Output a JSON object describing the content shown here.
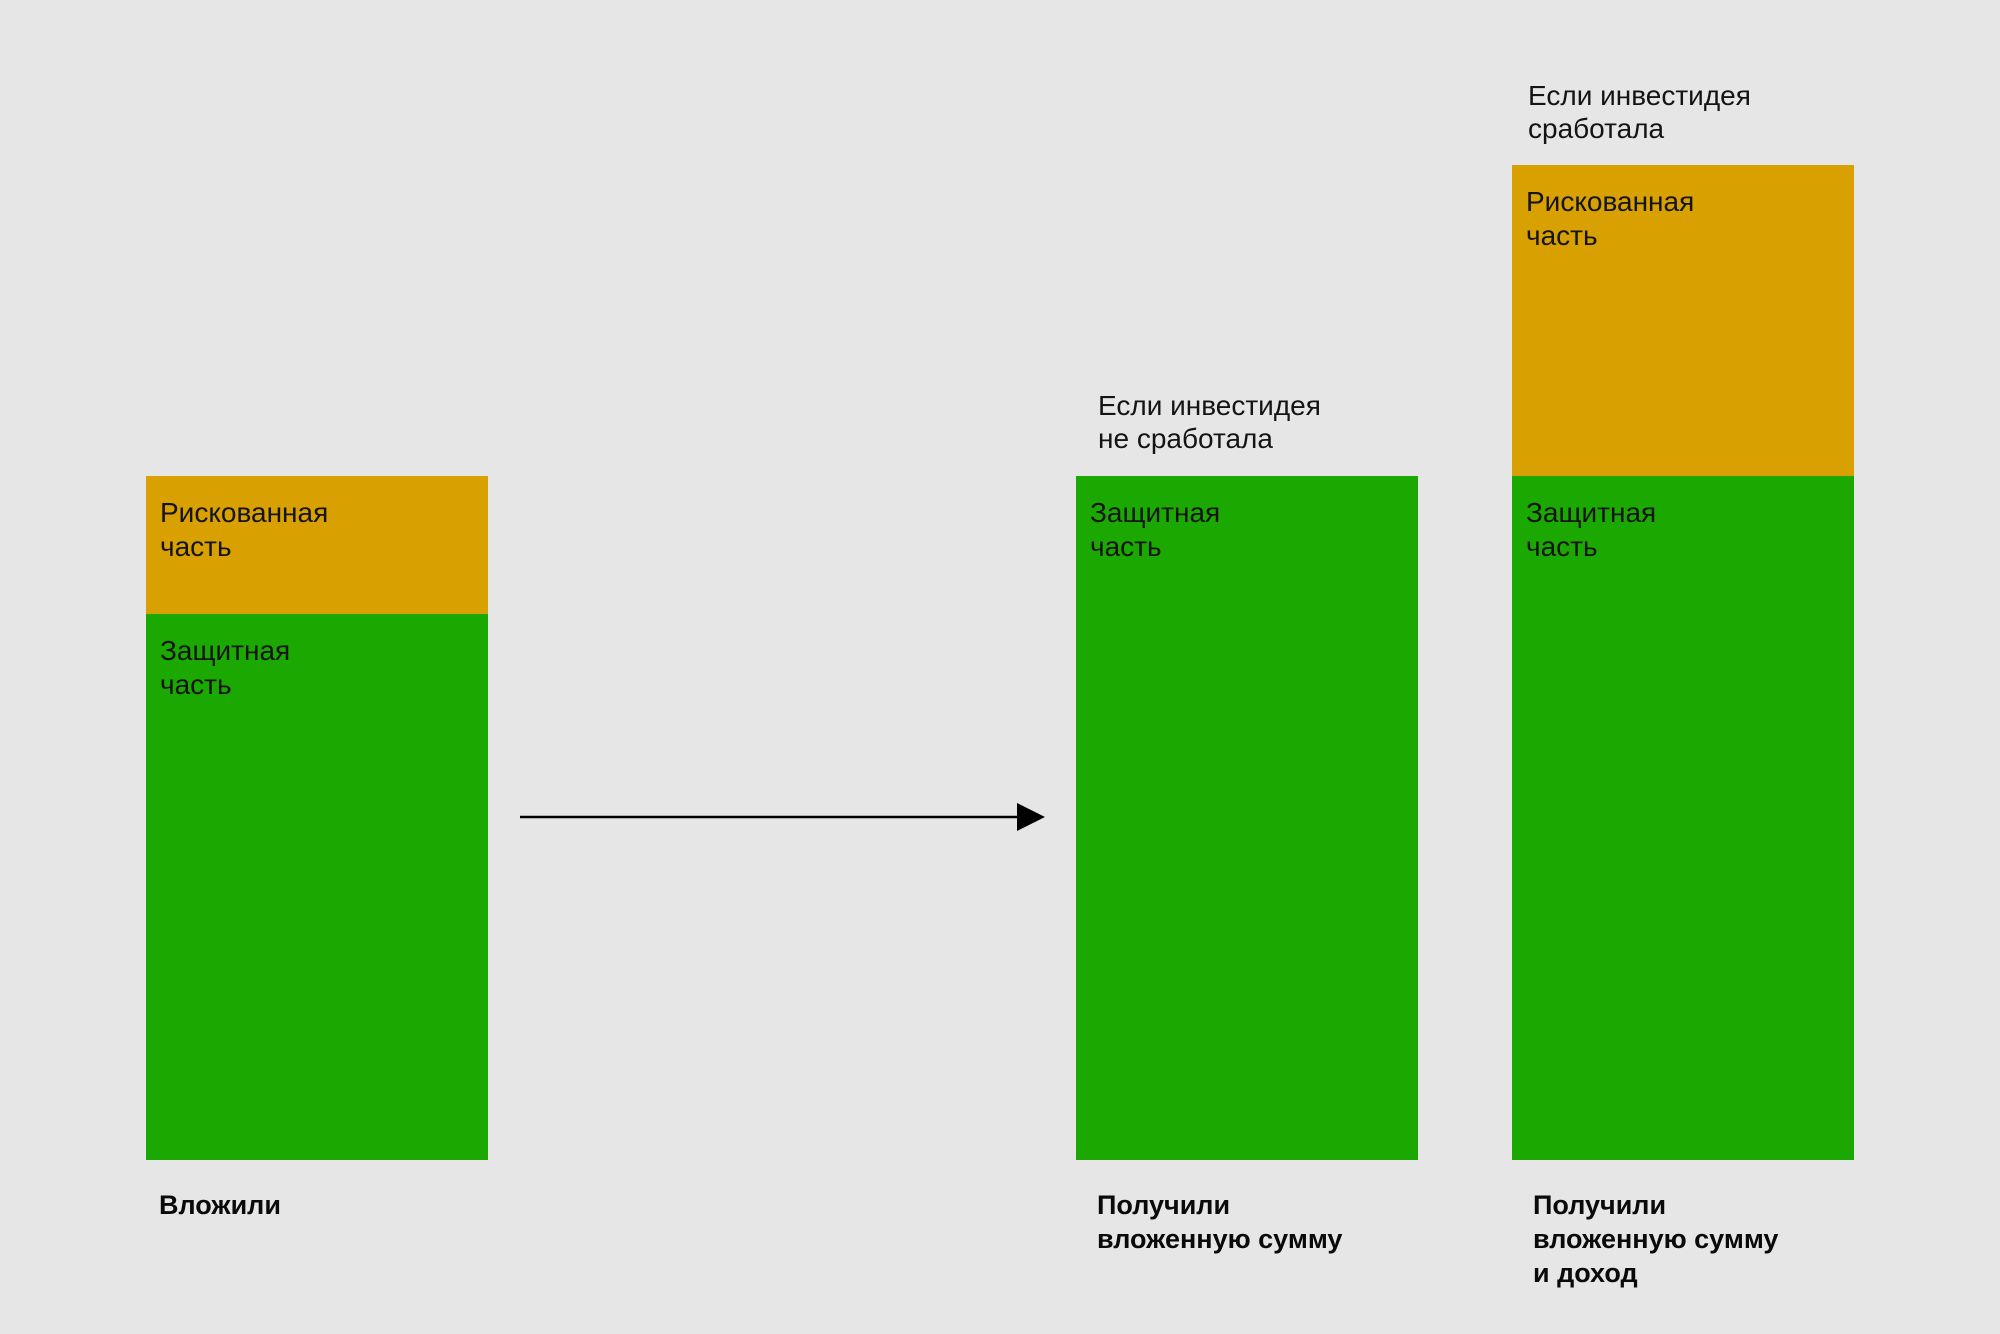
{
  "colors": {
    "background": "#e6e6e6",
    "safe_part": "#1aa801",
    "risky_part": "#d8a000",
    "arrow": "#000000"
  },
  "bars": [
    {
      "risky_label": "Рискованная\nчасть",
      "safe_label": "Защитная\nчасть",
      "bottom_label": "Вложили"
    },
    {
      "caption": "Если инвестидея\nне сработала",
      "safe_label": "Защитная\nчасть",
      "bottom_label": "Получили\nвложенную сумму"
    },
    {
      "caption": "Если инвестидея\nсработала",
      "risky_label": "Рискованная\nчасть",
      "safe_label": "Защитная\nчасть",
      "bottom_label": "Получили\nвложенную сумму\nи доход"
    }
  ]
}
